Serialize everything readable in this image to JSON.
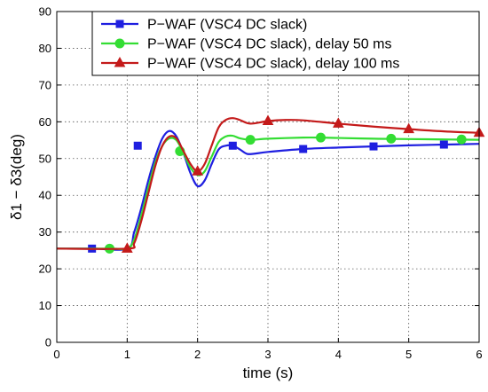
{
  "chart_data": {
    "type": "line",
    "xlabel": "time (s)",
    "ylabel": "δ1 − δ3(deg)",
    "xlim": [
      0,
      6
    ],
    "ylim": [
      0,
      90
    ],
    "xticks": [
      "0",
      "1",
      "2",
      "3",
      "4",
      "5",
      "6"
    ],
    "yticks": [
      "0",
      "10",
      "20",
      "30",
      "40",
      "50",
      "60",
      "70",
      "80",
      "90"
    ],
    "grid": true,
    "legend_position": "top-right",
    "series": [
      {
        "name": "P−WAF (VSC4 DC slack)",
        "color": "#1f1fe0",
        "marker": "square",
        "x": [
          0,
          0.5,
          1.0,
          1.1,
          1.2,
          1.3,
          1.4,
          1.5,
          1.6,
          1.7,
          1.8,
          1.9,
          2.0,
          2.1,
          2.2,
          2.3,
          2.4,
          2.5,
          2.6,
          2.7,
          2.8,
          3.0,
          3.5,
          4.0,
          4.5,
          5.0,
          5.5,
          6.0
        ],
        "y": [
          25.5,
          25.5,
          25.5,
          30,
          36.5,
          44,
          50.5,
          55.5,
          57.5,
          56,
          51.5,
          46,
          42.5,
          44,
          48.5,
          52.5,
          53.5,
          53.5,
          52.5,
          51.3,
          51.3,
          51.8,
          52.6,
          53.0,
          53.3,
          53.6,
          53.8,
          54.0
        ],
        "marker_x": [
          0.5,
          1.15,
          2.5,
          3.5,
          4.5,
          5.5
        ],
        "marker_y": [
          25.5,
          53.5,
          53.5,
          52.6,
          53.3,
          53.8
        ]
      },
      {
        "name": "P−WAF (VSC4 DC slack), delay 50 ms",
        "color": "#33dd33",
        "marker": "circle",
        "x": [
          0,
          0.75,
          1.0,
          1.1,
          1.2,
          1.3,
          1.4,
          1.5,
          1.6,
          1.7,
          1.8,
          1.9,
          2.0,
          2.1,
          2.2,
          2.3,
          2.4,
          2.5,
          2.6,
          2.75,
          3.0,
          3.5,
          3.75,
          4.0,
          4.5,
          5.0,
          5.5,
          6.0
        ],
        "y": [
          25.5,
          25.5,
          25.5,
          28,
          34.5,
          42,
          49,
          53.5,
          55.5,
          55,
          51.5,
          47.5,
          45.5,
          46.5,
          50.5,
          54.5,
          56,
          56.2,
          55.5,
          55.1,
          55.4,
          55.7,
          55.7,
          55.6,
          55.4,
          55.3,
          55.2,
          55.1
        ],
        "marker_x": [
          0.75,
          1.75,
          2.75,
          3.75,
          4.75,
          5.75
        ],
        "marker_y": [
          25.5,
          52,
          55.1,
          55.7,
          55.4,
          55.2
        ]
      },
      {
        "name": "P−WAF (VSC4 DC slack), delay 100 ms",
        "color": "#c41a1a",
        "marker": "triangle",
        "x": [
          0,
          1.0,
          1.1,
          1.2,
          1.3,
          1.4,
          1.5,
          1.6,
          1.7,
          1.8,
          1.9,
          2.0,
          2.1,
          2.2,
          2.3,
          2.4,
          2.5,
          2.6,
          2.75,
          3.0,
          3.25,
          3.5,
          4.0,
          4.5,
          5.0,
          5.5,
          6.0
        ],
        "y": [
          25.5,
          25.5,
          27,
          33,
          40.5,
          48,
          53.5,
          56,
          55.5,
          52,
          48.5,
          46.5,
          48.5,
          53.5,
          58.5,
          60.5,
          61,
          60.5,
          59.5,
          60.2,
          60.5,
          60.4,
          59.5,
          58.7,
          58.0,
          57.4,
          57.0
        ],
        "marker_x": [
          1.0,
          2.0,
          3.0,
          4.0,
          5.0,
          6.0
        ],
        "marker_y": [
          25.5,
          46.5,
          60.2,
          59.5,
          58.0,
          57.0
        ]
      }
    ]
  }
}
